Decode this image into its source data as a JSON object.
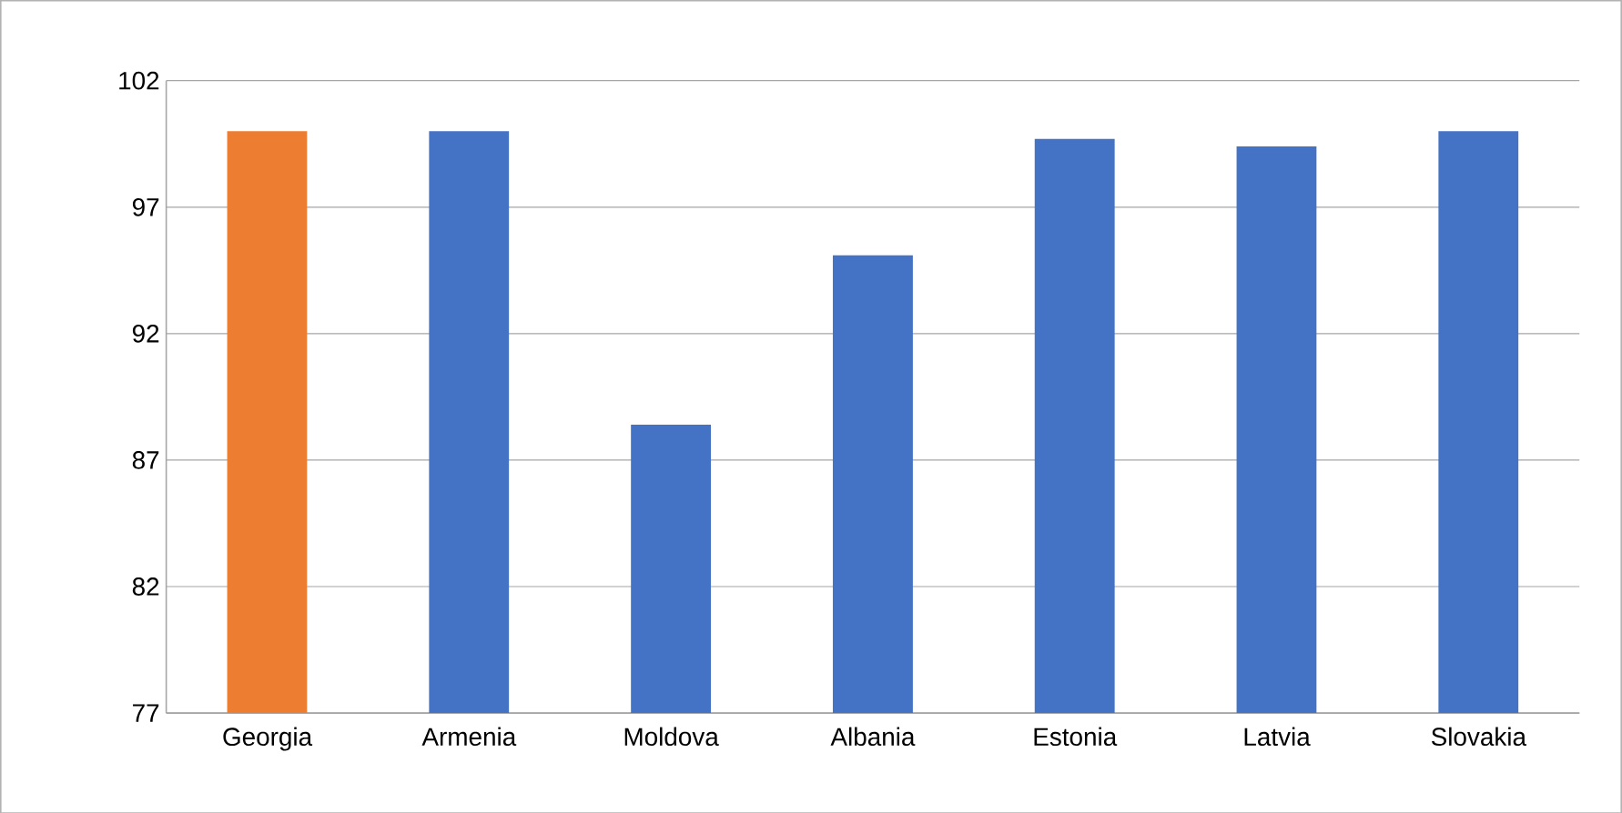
{
  "chart_data": {
    "type": "bar",
    "categories": [
      "Georgia",
      "Armenia",
      "Moldova",
      "Albania",
      "Estonia",
      "Latvia",
      "Slovakia"
    ],
    "values": [
      100,
      100,
      88.4,
      95.1,
      99.7,
      99.4,
      100
    ],
    "colors": [
      "#ed7d31",
      "#4472c4",
      "#4472c4",
      "#4472c4",
      "#4472c4",
      "#4472c4",
      "#4472c4"
    ],
    "ylim": [
      77,
      102
    ],
    "yticks": [
      77,
      82,
      87,
      92,
      97,
      102
    ],
    "grid": "y"
  }
}
